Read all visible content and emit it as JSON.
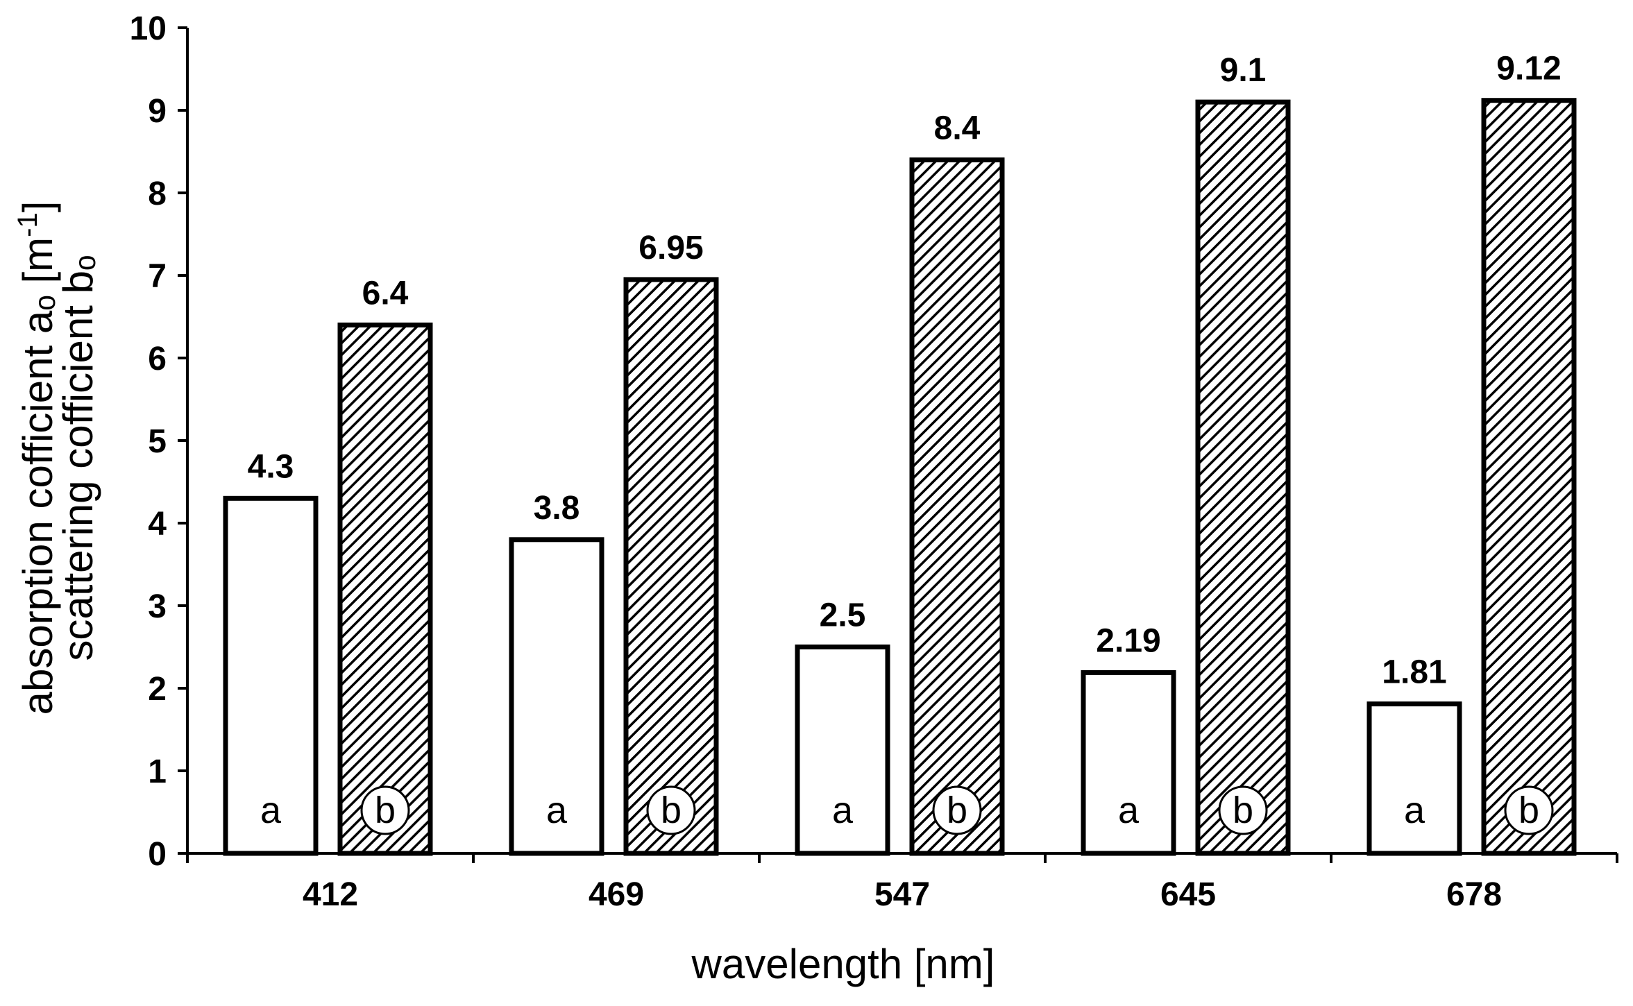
{
  "chart_data": {
    "type": "bar",
    "categories": [
      "412",
      "469",
      "547",
      "645",
      "678"
    ],
    "series": [
      {
        "name": "a",
        "label_tag": "a",
        "fill": "white",
        "values": [
          4.3,
          3.8,
          2.5,
          2.19,
          1.81
        ],
        "value_labels": [
          "4.3",
          "3.8",
          "2.5",
          "2.19",
          "1.81"
        ]
      },
      {
        "name": "b",
        "label_tag": "b",
        "fill": "hatched",
        "values": [
          6.4,
          6.95,
          8.4,
          9.1,
          9.12
        ],
        "value_labels": [
          "6.4",
          "6.95",
          "8.4",
          "9.1",
          "9.12"
        ]
      }
    ],
    "xlabel": "wavelength  [nm]",
    "ylabel_line1": "absorption cofficient  aₒ  [m",
    "ylabel_line1_sup": "-1",
    "ylabel_line1_end": "]",
    "ylabel_line2": "scattering cofficient  bₒ",
    "ylim": [
      0,
      10
    ],
    "yticks": [
      "0",
      "1",
      "2",
      "3",
      "4",
      "5",
      "6",
      "7",
      "8",
      "9",
      "10"
    ],
    "grid": false,
    "legend": "none"
  }
}
